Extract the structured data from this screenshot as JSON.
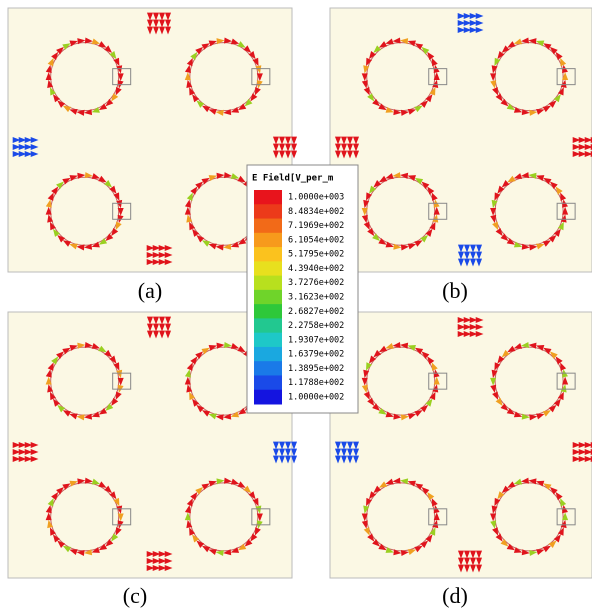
{
  "legend": {
    "title": "E Field[V_per_m",
    "labels": [
      "1.0000e+003",
      "8.4834e+002",
      "7.1969e+002",
      "6.1054e+002",
      "5.1795e+002",
      "4.3940e+002",
      "3.7276e+002",
      "3.1623e+002",
      "2.6827e+002",
      "2.2758e+002",
      "1.9307e+002",
      "1.6379e+002",
      "1.3895e+002",
      "1.1788e+002",
      "1.0000e+002"
    ],
    "colors": [
      "#e8141c",
      "#ec3a1a",
      "#f26a18",
      "#f79a1c",
      "#fbc21e",
      "#e8e01e",
      "#b8e01e",
      "#6fd42a",
      "#2ec83a",
      "#22c890",
      "#1ec8c8",
      "#1aa8e0",
      "#1a7ae8",
      "#1a4ae8",
      "#1414e0"
    ]
  },
  "panels": [
    {
      "label": "(a)"
    },
    {
      "label": "(b)"
    },
    {
      "label": "(c)"
    },
    {
      "label": "(d)"
    }
  ]
}
